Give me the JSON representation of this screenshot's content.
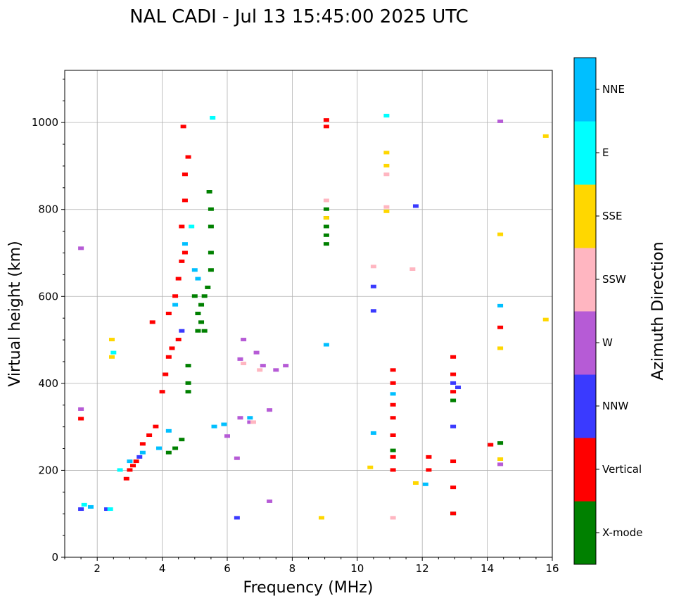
{
  "chart_data": {
    "type": "scatter",
    "title": "NAL CADI - Jul 13 15:45:00 2025 UTC",
    "xlabel": "Frequency (MHz)",
    "ylabel": "Virtual height (km)",
    "xlim": [
      1,
      16
    ],
    "ylim": [
      0,
      1120
    ],
    "xticks": [
      2,
      4,
      6,
      8,
      10,
      12,
      14,
      16
    ],
    "yticks": [
      0,
      200,
      400,
      600,
      800,
      1000
    ],
    "grid": true,
    "colorbar": {
      "label": "Azimuth Direction",
      "categories": [
        {
          "name": "X-mode",
          "color": "#008000"
        },
        {
          "name": "Vertical",
          "color": "#ff0000"
        },
        {
          "name": "NNW",
          "color": "#3a3aff"
        },
        {
          "name": "W",
          "color": "#b65bd6"
        },
        {
          "name": "SSW",
          "color": "#ffb6c1"
        },
        {
          "name": "SSE",
          "color": "#ffd700"
        },
        {
          "name": "E",
          "color": "#00ffff"
        },
        {
          "name": "NNE",
          "color": "#00bfff"
        }
      ]
    },
    "series": [
      {
        "name": "X-mode",
        "points": [
          [
            5.1,
            560
          ],
          [
            5.2,
            580
          ],
          [
            5.3,
            600
          ],
          [
            5.2,
            540
          ],
          [
            5.4,
            620
          ],
          [
            5.5,
            660
          ],
          [
            5.5,
            700
          ],
          [
            5.5,
            760
          ],
          [
            5.5,
            800
          ],
          [
            5.45,
            840
          ],
          [
            5.0,
            600
          ],
          [
            5.1,
            520
          ],
          [
            5.3,
            520
          ],
          [
            4.8,
            380
          ],
          [
            4.8,
            400
          ],
          [
            4.8,
            440
          ],
          [
            4.2,
            240
          ],
          [
            4.4,
            250
          ],
          [
            4.6,
            270
          ],
          [
            9.05,
            720
          ],
          [
            9.05,
            740
          ],
          [
            9.05,
            760
          ],
          [
            9.05,
            780
          ],
          [
            9.05,
            800
          ],
          [
            12.95,
            360
          ],
          [
            12.95,
            100
          ],
          [
            11.1,
            245
          ],
          [
            14.4,
            262
          ]
        ]
      },
      {
        "name": "Vertical",
        "points": [
          [
            2.9,
            180
          ],
          [
            3.0,
            200
          ],
          [
            3.1,
            210
          ],
          [
            3.2,
            220
          ],
          [
            3.4,
            260
          ],
          [
            3.6,
            280
          ],
          [
            3.8,
            300
          ],
          [
            4.0,
            380
          ],
          [
            4.1,
            420
          ],
          [
            4.2,
            460
          ],
          [
            4.3,
            480
          ],
          [
            4.5,
            500
          ],
          [
            4.2,
            560
          ],
          [
            4.4,
            600
          ],
          [
            4.5,
            640
          ],
          [
            4.6,
            680
          ],
          [
            4.7,
            700
          ],
          [
            4.6,
            760
          ],
          [
            4.7,
            820
          ],
          [
            4.7,
            880
          ],
          [
            4.8,
            920
          ],
          [
            4.65,
            990
          ],
          [
            9.05,
            990
          ],
          [
            9.05,
            1005
          ],
          [
            11.1,
            200
          ],
          [
            11.1,
            230
          ],
          [
            11.1,
            280
          ],
          [
            11.1,
            320
          ],
          [
            11.1,
            350
          ],
          [
            11.1,
            400
          ],
          [
            11.1,
            430
          ],
          [
            12.95,
            380
          ],
          [
            12.95,
            420
          ],
          [
            12.95,
            460
          ],
          [
            12.95,
            100
          ],
          [
            12.95,
            160
          ],
          [
            12.95,
            220
          ],
          [
            12.2,
            200
          ],
          [
            12.2,
            230
          ],
          [
            14.1,
            258
          ],
          [
            14.4,
            528
          ],
          [
            1.5,
            318
          ],
          [
            3.7,
            540
          ]
        ]
      },
      {
        "name": "NNW",
        "points": [
          [
            1.5,
            110
          ],
          [
            2.3,
            110
          ],
          [
            3.3,
            230
          ],
          [
            4.6,
            520
          ],
          [
            12.95,
            300
          ],
          [
            12.95,
            400
          ],
          [
            13.1,
            390
          ],
          [
            11.8,
            807
          ],
          [
            10.5,
            566
          ],
          [
            6.3,
            90
          ],
          [
            10.5,
            622
          ]
        ]
      },
      {
        "name": "W",
        "points": [
          [
            6.4,
            320
          ],
          [
            6.7,
            310
          ],
          [
            6.9,
            470
          ],
          [
            7.1,
            440
          ],
          [
            7.5,
            430
          ],
          [
            7.8,
            440
          ],
          [
            6.5,
            500
          ],
          [
            6.4,
            455
          ],
          [
            1.5,
            340
          ],
          [
            1.5,
            710
          ],
          [
            14.4,
            1002
          ],
          [
            14.4,
            213
          ],
          [
            7.3,
            128
          ],
          [
            6.3,
            227
          ],
          [
            6.0,
            278
          ],
          [
            7.3,
            338
          ]
        ]
      },
      {
        "name": "SSW",
        "points": [
          [
            6.5,
            445
          ],
          [
            6.8,
            310
          ],
          [
            7.0,
            430
          ],
          [
            9.05,
            820
          ],
          [
            10.9,
            805
          ],
          [
            11.7,
            662
          ],
          [
            11.1,
            90
          ],
          [
            10.5,
            668
          ],
          [
            10.9,
            880
          ]
        ]
      },
      {
        "name": "SSE",
        "points": [
          [
            2.45,
            460
          ],
          [
            2.45,
            500
          ],
          [
            10.9,
            900
          ],
          [
            10.9,
            930
          ],
          [
            9.05,
            780
          ],
          [
            14.4,
            742
          ],
          [
            14.4,
            480
          ],
          [
            15.8,
            968
          ],
          [
            15.8,
            546
          ],
          [
            8.9,
            90
          ],
          [
            10.4,
            206
          ],
          [
            11.8,
            170
          ],
          [
            14.4,
            225
          ],
          [
            10.9,
            795
          ]
        ]
      },
      {
        "name": "E",
        "points": [
          [
            1.6,
            120
          ],
          [
            2.4,
            110
          ],
          [
            2.7,
            200
          ],
          [
            4.9,
            760
          ],
          [
            5.55,
            1010
          ],
          [
            2.5,
            470
          ],
          [
            10.9,
            1015
          ]
        ]
      },
      {
        "name": "NNE",
        "points": [
          [
            1.8,
            115
          ],
          [
            3.0,
            220
          ],
          [
            3.4,
            240
          ],
          [
            3.9,
            250
          ],
          [
            4.2,
            290
          ],
          [
            4.4,
            580
          ],
          [
            4.7,
            720
          ],
          [
            5.0,
            660
          ],
          [
            5.1,
            640
          ],
          [
            5.6,
            300
          ],
          [
            5.9,
            305
          ],
          [
            6.7,
            320
          ],
          [
            9.05,
            488
          ],
          [
            11.1,
            375
          ],
          [
            12.1,
            167
          ],
          [
            14.4,
            578
          ],
          [
            10.5,
            285
          ]
        ]
      }
    ]
  }
}
